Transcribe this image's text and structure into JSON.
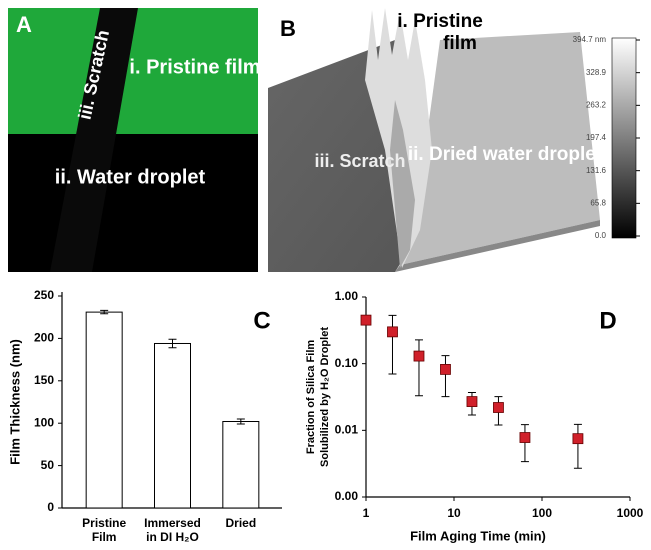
{
  "images": {
    "a": {
      "label": "A",
      "texts": [
        "i. Pristine film",
        "iii. Scratch",
        "ii. Water droplet"
      ]
    },
    "b": {
      "label": "B",
      "texts": [
        "i. Pristine film",
        "ii. Dried water droplet",
        "iii. Scratch"
      ],
      "colorbar_ticks": [
        "394.7 nm",
        "328.9",
        "263.2",
        "197.4",
        "131.6",
        "65.8",
        "0.0"
      ]
    }
  },
  "chart_data": [
    {
      "type": "bar",
      "label": "C",
      "ylabel": "Film Thickness (nm)",
      "categories": [
        "Pristine Film",
        "Immersed in DI H₂O",
        "Dried"
      ],
      "values": [
        231,
        194,
        102
      ],
      "errors": [
        2,
        5,
        3
      ],
      "color": "#ffffff",
      "ylim": [
        0,
        250
      ],
      "yticks": [
        0,
        50,
        100,
        150,
        200,
        250
      ]
    },
    {
      "type": "scatter",
      "label": "D",
      "xlabel": "Film Aging Time (min)",
      "ylabel": [
        "Fraction of Silica Film",
        "Solubilized by H₂O Droplet"
      ],
      "x": [
        1,
        2,
        4,
        8,
        16,
        32,
        64,
        256
      ],
      "values": [
        0.45,
        0.3,
        0.13,
        0.082,
        0.027,
        0.022,
        0.0078,
        0.0075
      ],
      "errors": [
        0.05,
        0.23,
        0.097,
        0.05,
        0.01,
        0.01,
        0.0044,
        0.0048
      ],
      "color": "#d0202a",
      "xscale": "log",
      "yscale": "log",
      "xlim": [
        1,
        1000
      ],
      "xticks": [
        1,
        10,
        100,
        1000
      ],
      "ylim": [
        0.001,
        1
      ],
      "yticks": [
        {
          "value": 0.001,
          "label": "0.00"
        },
        {
          "value": 0.01,
          "label": "0.01"
        },
        {
          "value": 0.1,
          "label": "0.10"
        },
        {
          "value": 1,
          "label": "1.00"
        }
      ]
    }
  ]
}
